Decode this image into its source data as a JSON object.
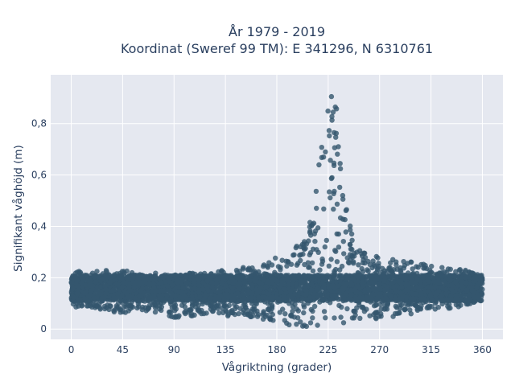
{
  "chart_data": {
    "type": "scatter",
    "title_line1": "År 1979 - 2019",
    "title_line2": "Koordinat (Sweref 99 TM): E 341296, N 6310761",
    "xlabel": "Vågriktning (grader)",
    "ylabel": "Signifikant våghöjd (m)",
    "xlim": [
      -18,
      378
    ],
    "ylim": [
      -0.04,
      0.99
    ],
    "x_ticks": [
      {
        "value": 0,
        "label": "0"
      },
      {
        "value": 45,
        "label": "45"
      },
      {
        "value": 90,
        "label": "90"
      },
      {
        "value": 135,
        "label": "135"
      },
      {
        "value": 180,
        "label": "180"
      },
      {
        "value": 225,
        "label": "225"
      },
      {
        "value": 270,
        "label": "270"
      },
      {
        "value": 315,
        "label": "315"
      },
      {
        "value": 360,
        "label": "360"
      }
    ],
    "y_ticks": [
      {
        "value": 0,
        "label": "0"
      },
      {
        "value": 0.2,
        "label": "0,2"
      },
      {
        "value": 0.4,
        "label": "0,4"
      },
      {
        "value": 0.6,
        "label": "0,6"
      },
      {
        "value": 0.8,
        "label": "0,8"
      }
    ],
    "grid": true,
    "marker_color": "#34566e",
    "plot_background": "#e5e8f0",
    "series": [
      {
        "x": [
          0,
          15,
          30,
          45,
          60,
          75,
          90,
          105,
          120,
          135,
          150,
          165,
          175,
          185,
          195,
          200,
          205,
          210,
          215,
          218,
          221,
          224,
          227,
          230,
          233,
          236,
          240,
          245,
          250,
          255,
          260,
          270,
          285,
          300,
          315,
          330,
          345,
          360
        ],
        "y_min": [
          0.08,
          0.09,
          0.07,
          0.06,
          0.07,
          0.06,
          0.04,
          0.05,
          0.06,
          0.05,
          0.05,
          0.04,
          0.03,
          0.02,
          0.01,
          0.0,
          0.0,
          0.0,
          0.0,
          0.0,
          0.0,
          0.0,
          0.0,
          0.0,
          0.0,
          0.0,
          0.0,
          0.01,
          0.02,
          0.03,
          0.03,
          0.04,
          0.05,
          0.06,
          0.07,
          0.08,
          0.09,
          0.11
        ],
        "y_max": [
          0.23,
          0.22,
          0.23,
          0.23,
          0.22,
          0.22,
          0.21,
          0.22,
          0.22,
          0.23,
          0.24,
          0.25,
          0.27,
          0.29,
          0.31,
          0.34,
          0.38,
          0.44,
          0.55,
          0.7,
          0.85,
          0.93,
          0.94,
          0.93,
          0.85,
          0.7,
          0.55,
          0.4,
          0.33,
          0.3,
          0.29,
          0.28,
          0.27,
          0.26,
          0.25,
          0.24,
          0.23,
          0.21
        ]
      }
    ]
  }
}
